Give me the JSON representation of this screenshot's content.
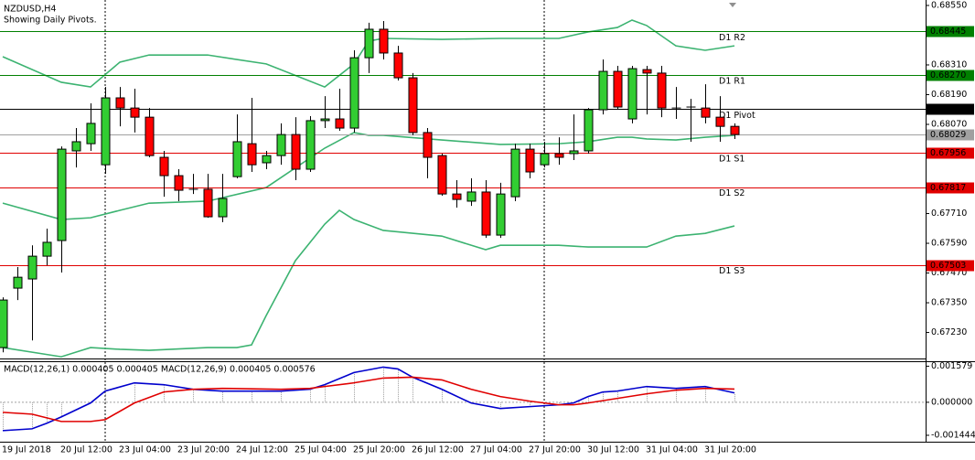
{
  "chart_data": [
    {
      "type": "candlestick",
      "title": "NZDUSD,H4",
      "subtitle": "Showing Daily Pivots.",
      "categories": [
        "19 Jul 2018",
        null,
        null,
        null,
        "20 Jul 12:00",
        null,
        null,
        null,
        "23 Jul 04:00",
        null,
        null,
        null,
        "23 Jul 20:00",
        null,
        null,
        null,
        "24 Jul 12:00",
        null,
        null,
        null,
        "25 Jul 04:00",
        null,
        null,
        null,
        "25 Jul 20:00",
        null,
        null,
        null,
        "26 Jul 12:00",
        null,
        null,
        null,
        "27 Jul 04:00",
        null,
        null,
        null,
        "27 Jul 20:00",
        null,
        null,
        null,
        "30 Jul 12:00",
        null,
        null,
        null,
        "31 Jul 04:00",
        null,
        null,
        null,
        "31 Jul 20:00",
        null,
        null
      ],
      "open": [
        0.67169,
        0.67409,
        0.67446,
        0.67538,
        0.67601,
        0.67963,
        0.67992,
        0.67907,
        0.68177,
        0.68136,
        0.68099,
        0.67937,
        0.67863,
        0.67808,
        0.67808,
        0.67697,
        0.67859,
        0.67992,
        0.67915,
        0.67944,
        0.68029,
        0.67889,
        0.68085,
        0.68092,
        0.68055,
        0.68339,
        0.68454,
        0.68358,
        0.68258,
        0.68037,
        0.67944,
        0.67789,
        0.6776,
        0.67797,
        0.67623,
        0.67778,
        0.6797,
        0.67907,
        0.67952,
        0.67952,
        0.67963,
        0.68129,
        0.68284,
        0.68092,
        0.68291,
        0.68277,
        0.68136,
        0.6814,
        0.68136,
        0.68099,
        0.68062
      ],
      "high": [
        0.67372,
        0.67494,
        0.67582,
        0.67649,
        0.67981,
        0.68055,
        0.68155,
        0.68221,
        0.68221,
        0.68214,
        0.68136,
        0.67963,
        0.67889,
        0.6787,
        0.6787,
        0.6787,
        0.6811,
        0.68177,
        0.67963,
        0.68074,
        0.68099,
        0.68103,
        0.68184,
        0.68214,
        0.68369,
        0.6848,
        0.68487,
        0.68387,
        0.68277,
        0.68055,
        0.67952,
        0.67845,
        0.67852,
        0.67845,
        0.67834,
        0.67992,
        0.67992,
        0.68,
        0.68018,
        0.6811,
        0.68136,
        0.68332,
        0.68306,
        0.68306,
        0.68306,
        0.68306,
        0.68221,
        0.68173,
        0.68232,
        0.68184,
        0.68074
      ],
      "low": [
        0.6715,
        0.67361,
        0.67198,
        0.67501,
        0.67472,
        0.67896,
        0.67963,
        0.6787,
        0.68062,
        0.68037,
        0.67937,
        0.67778,
        0.6776,
        0.67789,
        0.67693,
        0.67675,
        0.67852,
        0.67878,
        0.67889,
        0.67907,
        0.67845,
        0.67878,
        0.68055,
        0.68044,
        0.68037,
        0.68277,
        0.68332,
        0.68247,
        0.68026,
        0.67852,
        0.67782,
        0.67734,
        0.67741,
        0.67612,
        0.67612,
        0.6776,
        0.67852,
        0.67896,
        0.67907,
        0.67926,
        0.67952,
        0.6811,
        0.68129,
        0.68074,
        0.6811,
        0.68099,
        0.68092,
        0.68,
        0.68074,
        0.68,
        0.68011
      ],
      "close": [
        0.67361,
        0.67453,
        0.67538,
        0.67594,
        0.6797,
        0.68,
        0.68074,
        0.68177,
        0.68136,
        0.68099,
        0.67944,
        0.67863,
        0.67804,
        0.67808,
        0.67697,
        0.67771,
        0.68,
        0.67907,
        0.67944,
        0.68029,
        0.67889,
        0.68085,
        0.68092,
        0.68055,
        0.68339,
        0.68454,
        0.68358,
        0.68258,
        0.68037,
        0.67937,
        0.67789,
        0.67767,
        0.67797,
        0.67623,
        0.67789,
        0.6797,
        0.67878,
        0.67952,
        0.67937,
        0.67963,
        0.68129,
        0.68284,
        0.6814,
        0.68295,
        0.68277,
        0.68136,
        0.68136,
        0.6814,
        0.68099,
        0.68062,
        0.68029
      ],
      "up_color": "#32cd32",
      "down_color": "#ff0000",
      "bands": {
        "color": "#3cb371",
        "series": [
          {
            "x": [
              0,
              4,
              6,
              8,
              10,
              14,
              18,
              22,
              24,
              25,
              26,
              30,
              34,
              38,
              40,
              42,
              43,
              44,
              46,
              48,
              50
            ],
            "values": [
              0.68343,
              0.6824,
              0.68221,
              0.68321,
              0.6835,
              0.6835,
              0.68314,
              0.68221,
              0.68314,
              0.68406,
              0.68417,
              0.68413,
              0.68417,
              0.68417,
              0.68443,
              0.68461,
              0.68491,
              0.68469,
              0.68387,
              0.68369,
              0.68387
            ]
          },
          {
            "x": [
              0,
              4,
              6,
              8,
              10,
              14,
              18,
              22,
              24,
              25,
              26,
              30,
              34,
              38,
              40,
              42,
              43,
              44,
              46,
              48,
              50
            ],
            "values": [
              0.67752,
              0.67686,
              0.67693,
              0.67723,
              0.67752,
              0.6776,
              0.67815,
              0.67974,
              0.68037,
              0.68026,
              0.68026,
              0.68007,
              0.67989,
              0.67992,
              0.68,
              0.68018,
              0.68018,
              0.68011,
              0.68007,
              0.68018,
              0.68026
            ]
          },
          {
            "x": [
              0,
              4,
              6,
              8,
              10,
              14,
              16,
              17,
              18,
              20,
              22,
              23,
              24,
              26,
              30,
              33,
              34,
              38,
              40,
              42,
              44,
              46,
              48,
              50
            ],
            "values": [
              0.67169,
              0.67132,
              0.67169,
              0.67162,
              0.67158,
              0.67169,
              0.67169,
              0.6718,
              0.67298,
              0.6752,
              0.67667,
              0.67723,
              0.67686,
              0.67642,
              0.67619,
              0.67564,
              0.67582,
              0.67582,
              0.67575,
              0.67575,
              0.67575,
              0.67619,
              0.6763,
              0.6766
            ]
          }
        ]
      },
      "levels": [
        {
          "name": "D1 R2",
          "value": 0.68445,
          "color": "#008000"
        },
        {
          "name": "D1 R1",
          "value": 0.6827,
          "label": "0.68270",
          "color": "#008000"
        },
        {
          "name": "D1 Pivot",
          "value": 0.68131,
          "color": "#000000"
        },
        {
          "name": "D1 S1",
          "value": 0.67956,
          "color": "#e00000"
        },
        {
          "name": "D1 S2",
          "value": 0.67817,
          "color": "#e00000"
        },
        {
          "name": "D1 S3",
          "value": 0.67503,
          "color": "#e00000"
        }
      ],
      "current_price": {
        "value": 0.68029,
        "color": "#a0a0a0"
      },
      "ylim": [
        0.67125,
        0.68572
      ],
      "yticks": [
        {
          "value": 0.6855,
          "label": "0.68550"
        },
        {
          "value": 0.6831,
          "label": "0.68310"
        },
        {
          "value": 0.6819,
          "label": "0.68190"
        },
        {
          "value": 0.6807,
          "label": "0.68070"
        },
        {
          "value": 0.6771,
          "label": "0.67710"
        },
        {
          "value": 0.6759,
          "label": "0.67590"
        },
        {
          "value": 0.6747,
          "label": "0.67470"
        },
        {
          "value": 0.6735,
          "label": "0.67350"
        },
        {
          "value": 0.6723,
          "label": "0.67230"
        }
      ]
    },
    {
      "type": "macd",
      "label": "MACD(12,26,1) 0.000405 0.000405 MACD(12,26,9) 0.000405 0.000576",
      "series": [
        {
          "color": "#0000cd",
          "histogram": true,
          "histogram_color": "#a0a0a0",
          "x": [
            0,
            2,
            3,
            4,
            6,
            7,
            9,
            11,
            13,
            15,
            17,
            19,
            21,
            22,
            24,
            26,
            27,
            28,
            30,
            32,
            34,
            36,
            38,
            39,
            40,
            41,
            42,
            44,
            46,
            48,
            50
          ],
          "values": [
            -0.00124,
            -0.00116,
            -0.00092,
            -0.00064,
            -3e-05,
            0.00049,
            0.00085,
            0.00077,
            0.00057,
            0.00049,
            0.00049,
            0.00049,
            0.00057,
            0.00077,
            0.0013,
            0.00154,
            0.00146,
            0.0011,
            0.00057,
            -3e-05,
            -0.00027,
            -0.00019,
            -0.00011,
            -3e-05,
            0.00025,
            0.00045,
            0.00049,
            0.00069,
            0.00061,
            0.00069,
            0.00041
          ]
        },
        {
          "color": "#e00000",
          "x": [
            0,
            2,
            4,
            6,
            7,
            9,
            11,
            13,
            15,
            19,
            21,
            22,
            24,
            26,
            28,
            30,
            32,
            34,
            36,
            38,
            39,
            40,
            42,
            44,
            46,
            48,
            50
          ],
          "values": [
            -0.00044,
            -0.00052,
            -0.00084,
            -0.00084,
            -0.00076,
            -3e-05,
            0.00045,
            0.00057,
            0.00061,
            0.00057,
            0.00061,
            0.00069,
            0.00085,
            0.00106,
            0.0011,
            0.00098,
            0.00057,
            0.00025,
            5e-05,
            -0.00011,
            -0.00011,
            -3e-05,
            0.00017,
            0.00037,
            0.00053,
            0.00061,
            0.00058
          ]
        }
      ],
      "ylim": [
        -0.001725,
        0.001756
      ],
      "yticks": [
        0.001579,
        {
          "value": 0,
          "label": "0.000000"
        },
        -0.001444
      ]
    }
  ]
}
